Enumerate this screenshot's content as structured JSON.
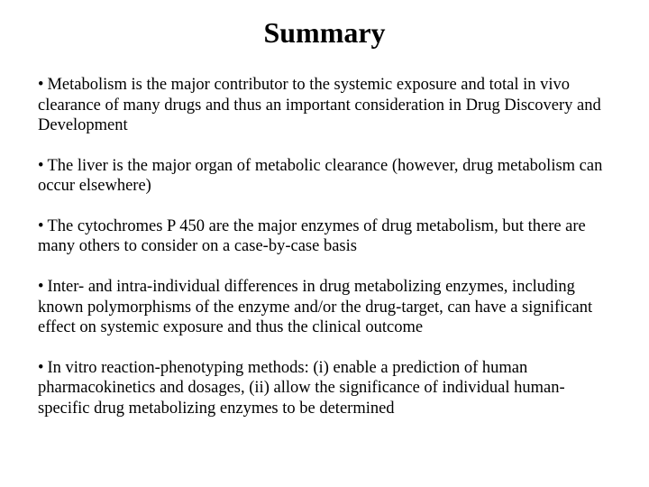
{
  "title": "Summary",
  "title_fontsize": 32,
  "body_fontsize": 18.5,
  "text_color": "#000000",
  "background_color": "#ffffff",
  "bullets": [
    "Metabolism is the major contributor to the systemic exposure and total in vivo clearance of many drugs and thus an important consideration in Drug Discovery and Development",
    "The liver is the major organ of metabolic clearance (however, drug metabolism can occur elsewhere)",
    "The cytochromes P 450 are the major enzymes of drug metabolism, but there are many others to consider on a case-by-case basis",
    "Inter- and intra-individual differences in drug metabolizing enzymes, including known polymorphisms of the enzyme and/or the drug-target, can have a significant effect on systemic exposure and thus the clinical outcome",
    "In vitro reaction-phenotyping methods: (i) enable a prediction of human pharmacokinetics and dosages, (ii) allow the significance of individual human-specific drug metabolizing enzymes to be determined"
  ]
}
